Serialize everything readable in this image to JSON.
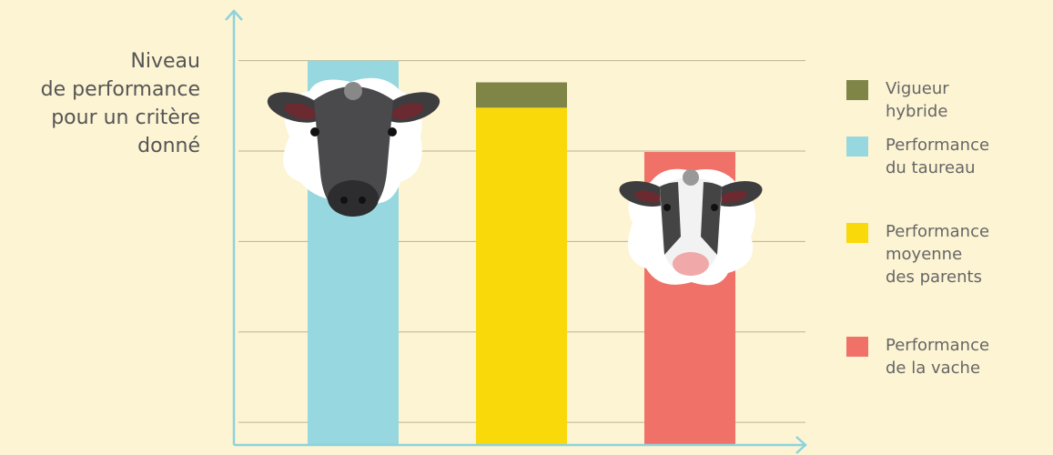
{
  "chart_data": {
    "type": "stacked_bar",
    "y_label": "Niveau\nde performance\npour un critère\ndonné",
    "categories": [
      null,
      null,
      null
    ],
    "series": [
      {
        "name": "Vigueur hybride",
        "color": "#7f8447",
        "values": [
          null,
          0.28,
          null
        ]
      },
      {
        "name": "Performance\ndu taureau",
        "color": "#97d7df",
        "values": [
          4.25,
          null,
          null
        ]
      },
      {
        "name": "Performance\nmoyenne\ndes parents",
        "color": "#f9d90a",
        "values": [
          null,
          3.73,
          null
        ]
      },
      {
        "name": "Performance\nde la vache",
        "color": "#f07167",
        "values": [
          null,
          null,
          3.24
        ]
      }
    ],
    "ylim": [
      0,
      4.8
    ],
    "yticks": [
      0.25,
      1.25,
      2.25,
      3.25,
      4.25
    ],
    "grid": true,
    "axis_color": "#8dd3dc",
    "legend": "right"
  }
}
